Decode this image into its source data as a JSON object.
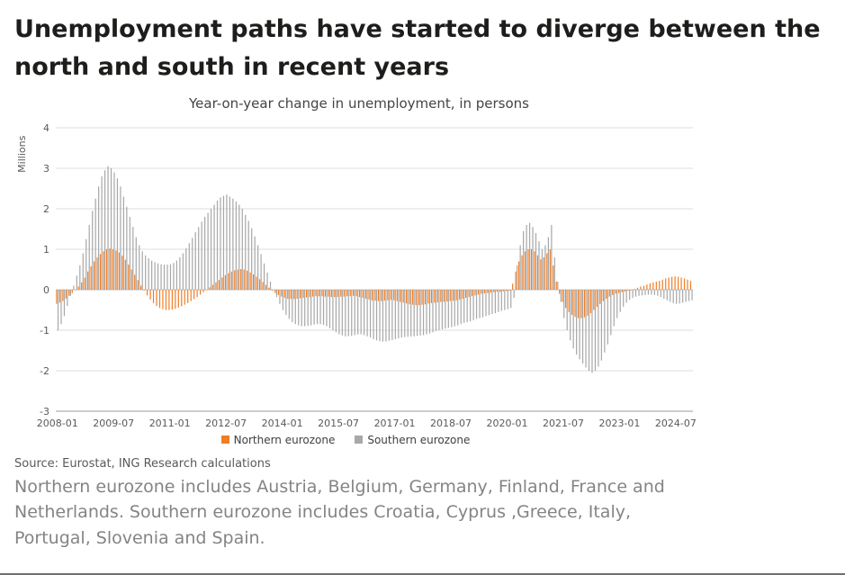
{
  "page": {
    "title": "Unemployment paths have started to diverge between the north and south in recent years",
    "source": "Source: Eurostat, ING Research calculations",
    "footnote": "Northern eurozone includes Austria, Belgium, Germany, Finland, France and Netherlands. Southern eurozone includes Croatia, Cyprus ,Greece, Italy, Portugal, Slovenia and Spain."
  },
  "chart_data": {
    "type": "bar",
    "title": "Year-on-year change in unemployment, in persons",
    "ylabel": "Millions",
    "ylim": [
      -3,
      4
    ],
    "yticks": [
      4,
      3,
      2,
      1,
      0,
      -1,
      -2,
      -3
    ],
    "start_month": "2008-01",
    "frequency": "monthly",
    "xtick_every_months": 18,
    "xtick_labels": [
      "2008-01",
      "2009-07",
      "2011-01",
      "2012-07",
      "2014-01",
      "2015-07",
      "2017-01",
      "2018-07",
      "2020-01",
      "2021-07",
      "2023-01",
      "2024-07"
    ],
    "grid": true,
    "legend_position": "bottom",
    "series": [
      {
        "name": "Northern eurozone",
        "color": "#f07e26",
        "values": [
          -0.35,
          -0.32,
          -0.28,
          -0.22,
          -0.15,
          -0.08,
          0.0,
          0.08,
          0.18,
          0.3,
          0.45,
          0.58,
          0.7,
          0.8,
          0.88,
          0.95,
          1.0,
          1.02,
          1.0,
          0.97,
          0.92,
          0.84,
          0.74,
          0.62,
          0.5,
          0.37,
          0.24,
          0.1,
          -0.02,
          -0.14,
          -0.24,
          -0.33,
          -0.4,
          -0.45,
          -0.48,
          -0.5,
          -0.5,
          -0.49,
          -0.47,
          -0.44,
          -0.41,
          -0.37,
          -0.33,
          -0.28,
          -0.23,
          -0.18,
          -0.12,
          -0.06,
          0.0,
          0.06,
          0.12,
          0.18,
          0.24,
          0.3,
          0.36,
          0.41,
          0.45,
          0.48,
          0.5,
          0.51,
          0.5,
          0.47,
          0.43,
          0.38,
          0.32,
          0.26,
          0.19,
          0.12,
          0.05,
          -0.02,
          -0.08,
          -0.13,
          -0.17,
          -0.2,
          -0.22,
          -0.23,
          -0.23,
          -0.22,
          -0.21,
          -0.2,
          -0.19,
          -0.18,
          -0.17,
          -0.16,
          -0.16,
          -0.16,
          -0.17,
          -0.17,
          -0.18,
          -0.18,
          -0.18,
          -0.17,
          -0.17,
          -0.16,
          -0.16,
          -0.15,
          -0.16,
          -0.18,
          -0.2,
          -0.22,
          -0.24,
          -0.26,
          -0.27,
          -0.28,
          -0.28,
          -0.27,
          -0.26,
          -0.25,
          -0.26,
          -0.28,
          -0.3,
          -0.32,
          -0.34,
          -0.36,
          -0.37,
          -0.38,
          -0.38,
          -0.37,
          -0.36,
          -0.34,
          -0.33,
          -0.32,
          -0.31,
          -0.3,
          -0.3,
          -0.29,
          -0.28,
          -0.27,
          -0.26,
          -0.24,
          -0.22,
          -0.2,
          -0.18,
          -0.16,
          -0.14,
          -0.12,
          -0.1,
          -0.09,
          -0.08,
          -0.07,
          -0.06,
          -0.05,
          -0.05,
          -0.04,
          -0.03,
          -0.02,
          0.15,
          0.45,
          0.7,
          0.85,
          0.95,
          1.0,
          1.0,
          0.95,
          0.85,
          0.75,
          0.8,
          0.9,
          1.0,
          0.6,
          0.2,
          -0.1,
          -0.3,
          -0.45,
          -0.55,
          -0.62,
          -0.67,
          -0.7,
          -0.7,
          -0.68,
          -0.64,
          -0.58,
          -0.5,
          -0.42,
          -0.35,
          -0.28,
          -0.22,
          -0.17,
          -0.13,
          -0.1,
          -0.08,
          -0.06,
          -0.04,
          -0.02,
          0.0,
          0.02,
          0.05,
          0.08,
          0.1,
          0.13,
          0.16,
          0.18,
          0.2,
          0.22,
          0.25,
          0.28,
          0.3,
          0.32,
          0.33,
          0.32,
          0.3,
          0.28,
          0.25,
          0.22
        ]
      },
      {
        "name": "Southern eurozone",
        "color": "#a8a8a8",
        "values": [
          -1.0,
          -0.85,
          -0.65,
          -0.4,
          -0.15,
          0.1,
          0.35,
          0.6,
          0.9,
          1.25,
          1.6,
          1.95,
          2.25,
          2.55,
          2.8,
          2.95,
          3.05,
          3.0,
          2.9,
          2.75,
          2.55,
          2.3,
          2.05,
          1.8,
          1.55,
          1.3,
          1.1,
          0.95,
          0.85,
          0.78,
          0.72,
          0.68,
          0.65,
          0.63,
          0.62,
          0.62,
          0.63,
          0.66,
          0.72,
          0.8,
          0.9,
          1.02,
          1.15,
          1.28,
          1.42,
          1.55,
          1.68,
          1.8,
          1.9,
          2.0,
          2.1,
          2.2,
          2.28,
          2.32,
          2.35,
          2.3,
          2.25,
          2.18,
          2.1,
          2.0,
          1.85,
          1.7,
          1.52,
          1.32,
          1.1,
          0.88,
          0.65,
          0.42,
          0.2,
          0.0,
          -0.18,
          -0.35,
          -0.5,
          -0.62,
          -0.72,
          -0.8,
          -0.85,
          -0.88,
          -0.9,
          -0.9,
          -0.89,
          -0.88,
          -0.86,
          -0.85,
          -0.85,
          -0.87,
          -0.9,
          -0.95,
          -1.0,
          -1.05,
          -1.1,
          -1.13,
          -1.15,
          -1.15,
          -1.14,
          -1.12,
          -1.1,
          -1.1,
          -1.12,
          -1.15,
          -1.18,
          -1.22,
          -1.25,
          -1.27,
          -1.28,
          -1.28,
          -1.26,
          -1.24,
          -1.22,
          -1.2,
          -1.18,
          -1.17,
          -1.16,
          -1.15,
          -1.15,
          -1.14,
          -1.13,
          -1.12,
          -1.1,
          -1.08,
          -1.05,
          -1.02,
          -1.0,
          -0.98,
          -0.96,
          -0.94,
          -0.92,
          -0.9,
          -0.88,
          -0.85,
          -0.82,
          -0.8,
          -0.78,
          -0.75,
          -0.72,
          -0.7,
          -0.68,
          -0.65,
          -0.63,
          -0.6,
          -0.58,
          -0.55,
          -0.52,
          -0.5,
          -0.48,
          -0.45,
          -0.2,
          0.6,
          1.1,
          1.45,
          1.6,
          1.65,
          1.55,
          1.4,
          1.2,
          1.0,
          1.1,
          1.3,
          1.6,
          0.8,
          0.2,
          -0.3,
          -0.7,
          -1.0,
          -1.25,
          -1.45,
          -1.6,
          -1.72,
          -1.82,
          -1.92,
          -2.0,
          -2.05,
          -2.0,
          -1.9,
          -1.75,
          -1.55,
          -1.35,
          -1.12,
          -0.9,
          -0.7,
          -0.55,
          -0.42,
          -0.32,
          -0.25,
          -0.2,
          -0.17,
          -0.15,
          -0.14,
          -0.13,
          -0.12,
          -0.12,
          -0.13,
          -0.15,
          -0.18,
          -0.22,
          -0.26,
          -0.3,
          -0.33,
          -0.35,
          -0.34,
          -0.32,
          -0.3,
          -0.28,
          -0.26
        ]
      }
    ]
  }
}
